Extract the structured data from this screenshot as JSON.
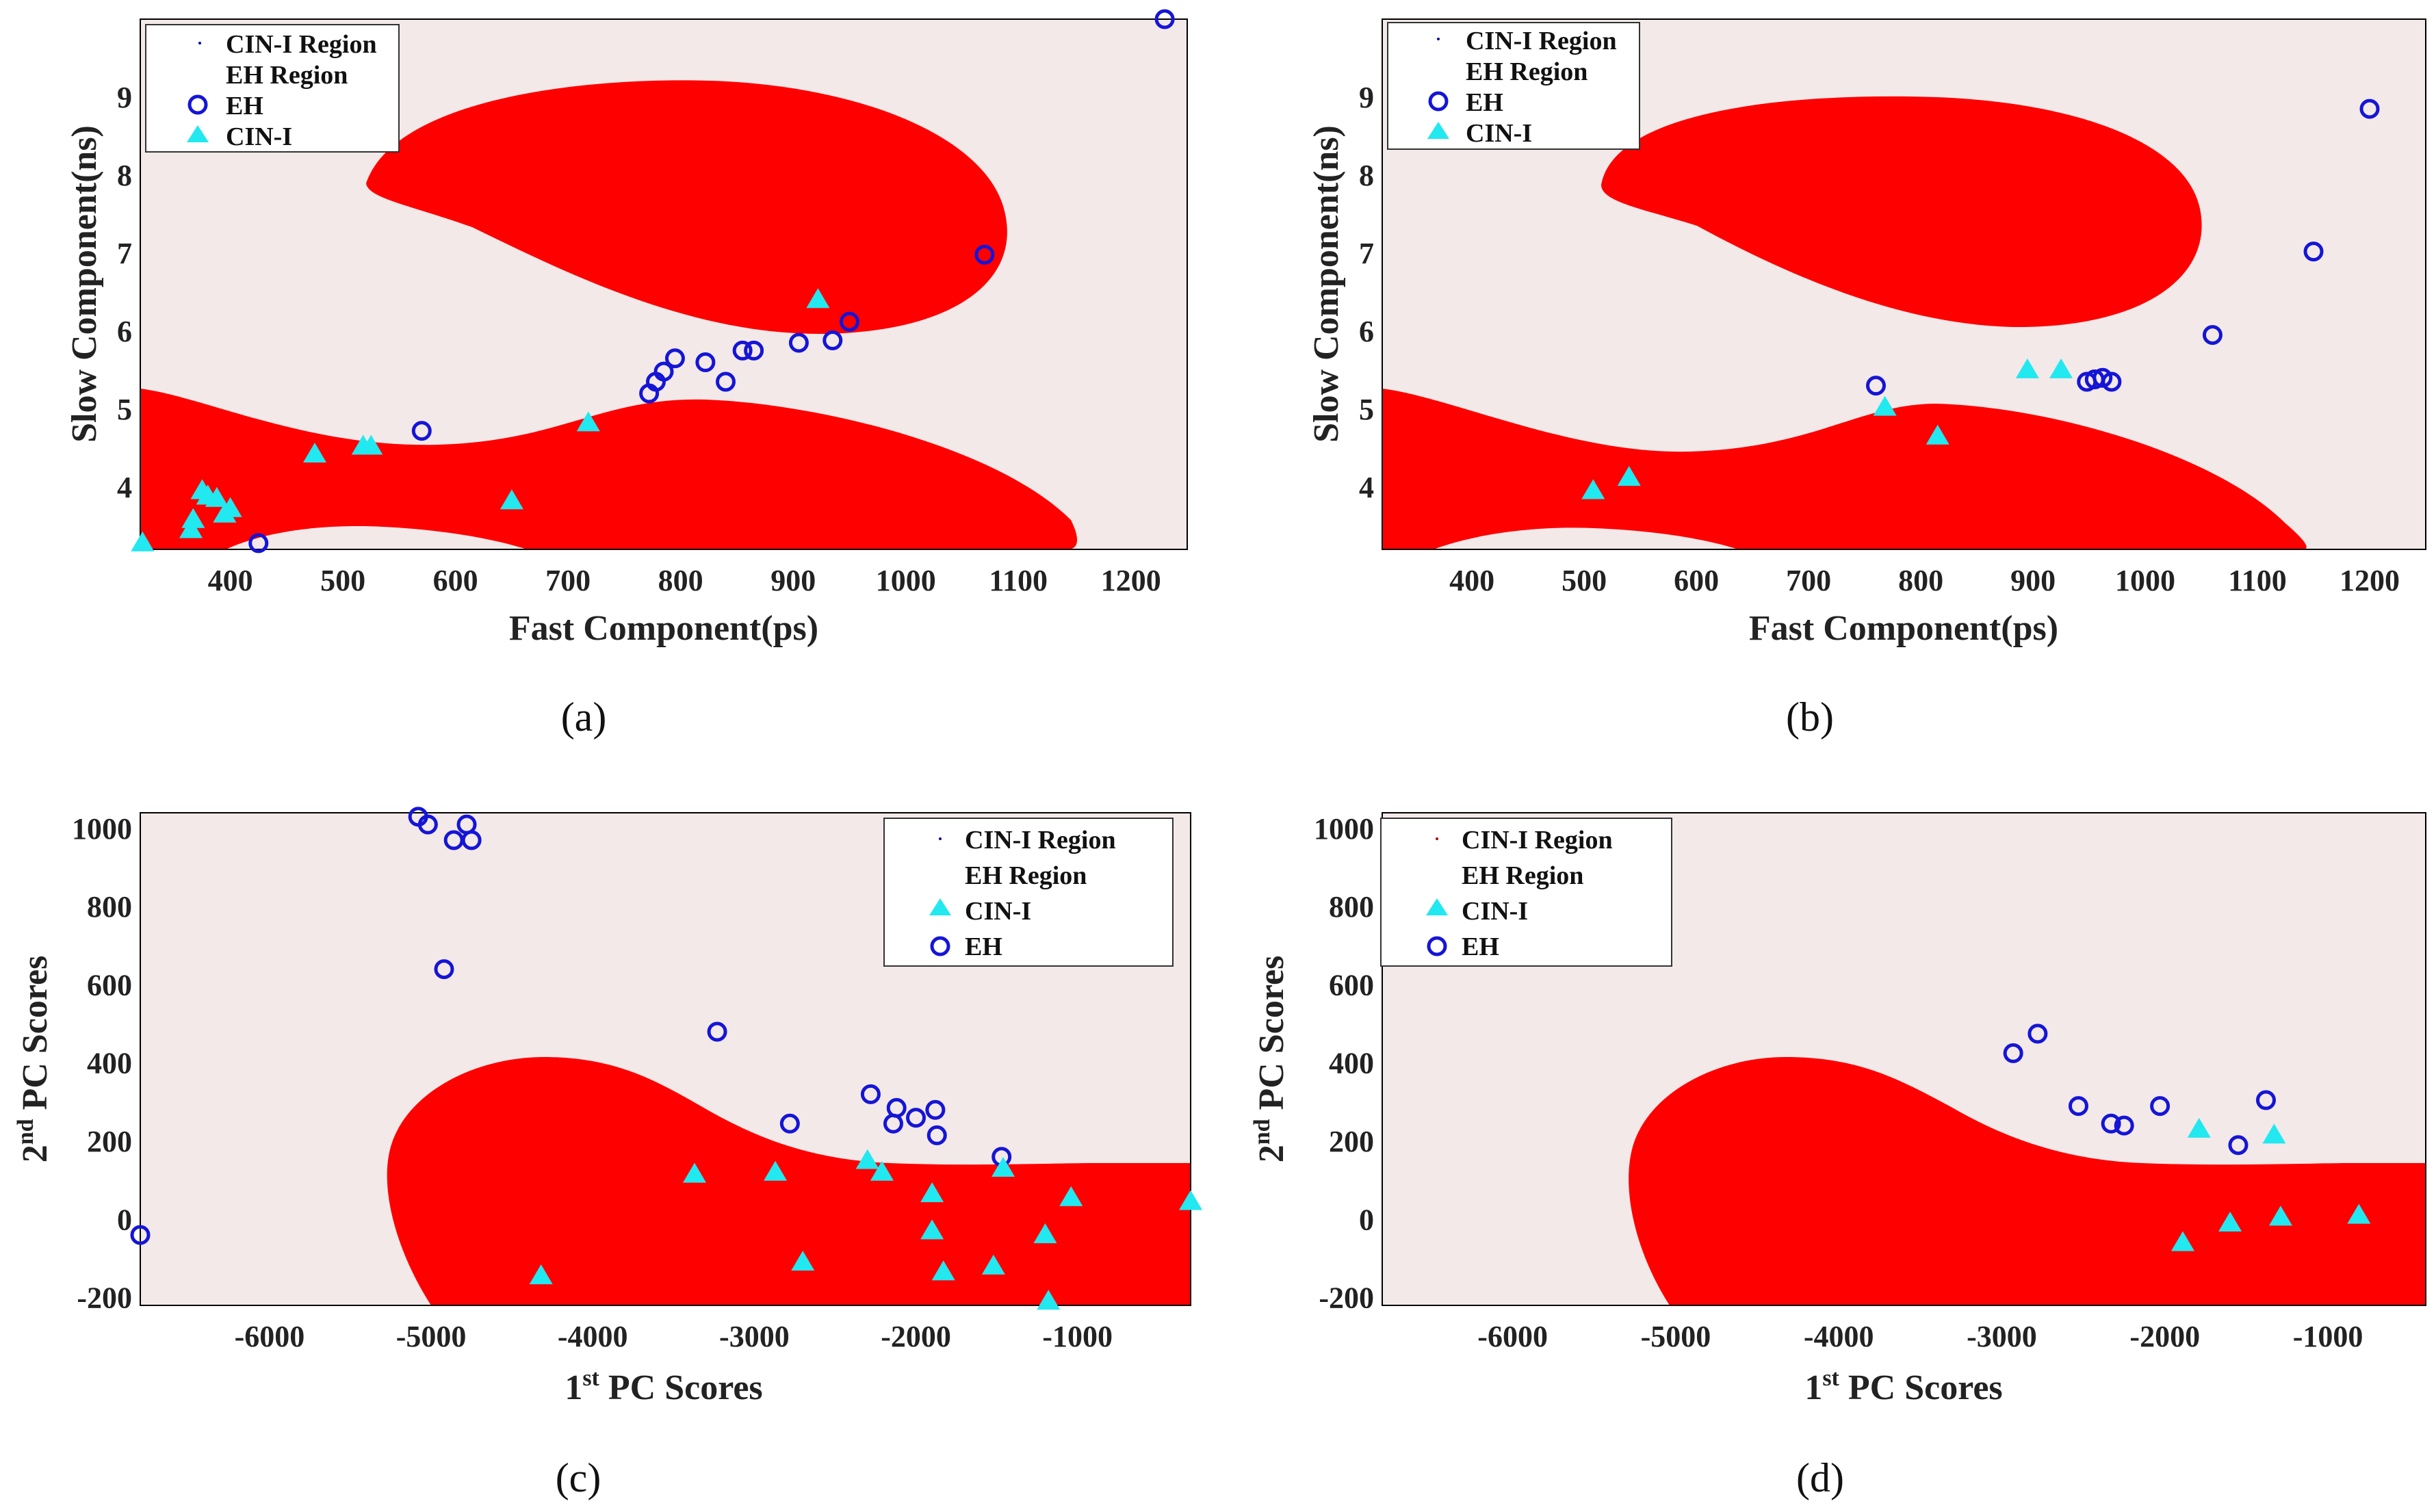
{
  "colors": {
    "plot_background": "#f3e9e9",
    "region_fill": "#ff0000",
    "eh_marker": "#1515d6",
    "cin_marker": "#22e8f0",
    "axis": "#000000"
  },
  "chart_data": [
    {
      "id": "a",
      "type": "scatter",
      "caption": "(a)",
      "xlabel": "Fast Component(ps)",
      "ylabel": "Slow Component(ns)",
      "xlim": [
        320,
        1250
      ],
      "ylim": [
        3.2,
        10
      ],
      "xticks": [
        400,
        500,
        600,
        700,
        800,
        900,
        1000,
        1100,
        1200
      ],
      "yticks": [
        4,
        5,
        6,
        7,
        8,
        9
      ],
      "legend_position": "top-left",
      "legend": [
        "CIN-I Region",
        "EH Region",
        "EH",
        "CIN-I"
      ],
      "series": [
        {
          "name": "EH",
          "marker": "circle",
          "points": [
            [
              1230,
              10.0
            ],
            [
              1070,
              6.98
            ],
            [
              950,
              6.12
            ],
            [
              935,
              5.88
            ],
            [
              905,
              5.85
            ],
            [
              865,
              5.75
            ],
            [
              855,
              5.75
            ],
            [
              840,
              5.35
            ],
            [
              822,
              5.6
            ],
            [
              795,
              5.65
            ],
            [
              785,
              5.48
            ],
            [
              778,
              5.35
            ],
            [
              772,
              5.2
            ],
            [
              570,
              4.72
            ],
            [
              425,
              3.28
            ]
          ]
        },
        {
          "name": "CIN-I",
          "marker": "triangle",
          "points": [
            [
              322,
              3.28
            ],
            [
              365,
              3.45
            ],
            [
              367,
              3.58
            ],
            [
              375,
              3.95
            ],
            [
              380,
              3.88
            ],
            [
              388,
              3.85
            ],
            [
              395,
              3.65
            ],
            [
              400,
              3.72
            ],
            [
              475,
              4.42
            ],
            [
              518,
              4.52
            ],
            [
              525,
              4.52
            ],
            [
              650,
              3.82
            ],
            [
              718,
              4.82
            ],
            [
              922,
              6.4
            ]
          ]
        }
      ]
    },
    {
      "id": "b",
      "type": "scatter",
      "caption": "(b)",
      "xlabel": "Fast Component(ps)",
      "ylabel": "Slow Component(ns)",
      "xlim": [
        320,
        1250
      ],
      "ylim": [
        3.2,
        10
      ],
      "xticks": [
        400,
        500,
        600,
        700,
        800,
        900,
        1000,
        1100,
        1200
      ],
      "yticks": [
        4,
        5,
        6,
        7,
        8,
        9
      ],
      "legend_position": "top-left",
      "legend": [
        "CIN-I Region",
        "EH Region",
        "EH",
        "CIN-I"
      ],
      "series": [
        {
          "name": "EH",
          "marker": "circle",
          "points": [
            [
              1200,
              8.85
            ],
            [
              1150,
              7.02
            ],
            [
              1060,
              5.95
            ],
            [
              970,
              5.35
            ],
            [
              962,
              5.4
            ],
            [
              955,
              5.38
            ],
            [
              948,
              5.35
            ],
            [
              760,
              5.3
            ]
          ]
        },
        {
          "name": "CIN-I",
          "marker": "triangle",
          "points": [
            [
              508,
              3.95
            ],
            [
              540,
              4.12
            ],
            [
              768,
              5.02
            ],
            [
              815,
              4.65
            ],
            [
              895,
              5.5
            ],
            [
              925,
              5.5
            ]
          ]
        }
      ]
    },
    {
      "id": "c",
      "type": "scatter",
      "caption": "(c)",
      "xlabel": "1st PC Scores",
      "xlabel_main": "1",
      "xlabel_sup": "st",
      "xlabel_rest": " PC Scores",
      "ylabel": "2nd PC Scores",
      "ylabel_main": "2",
      "ylabel_sup": "nd",
      "ylabel_rest": " PC Scores",
      "xlim": [
        -6800,
        -300
      ],
      "ylim": [
        -220,
        1040
      ],
      "xticks": [
        -6000,
        -5000,
        -4000,
        -3000,
        -2000,
        -1000
      ],
      "yticks": [
        -200,
        0,
        200,
        400,
        600,
        800,
        1000
      ],
      "legend_position": "top-right",
      "legend": [
        "CIN-I Region",
        "EH Region",
        "CIN-I",
        "EH"
      ],
      "series": [
        {
          "name": "EH",
          "marker": "circle",
          "points": [
            [
              -6800,
              -40
            ],
            [
              -5080,
              1030
            ],
            [
              -5020,
              1010
            ],
            [
              -4920,
              640
            ],
            [
              -4860,
              970
            ],
            [
              -4780,
              1010
            ],
            [
              -4750,
              970
            ],
            [
              -3230,
              480
            ],
            [
              -2780,
              245
            ],
            [
              -2280,
              320
            ],
            [
              -2140,
              245
            ],
            [
              -2120,
              285
            ],
            [
              -2000,
              260
            ],
            [
              -1880,
              280
            ],
            [
              -1870,
              215
            ],
            [
              -1470,
              160
            ]
          ]
        },
        {
          "name": "CIN-I",
          "marker": "triangle",
          "points": [
            [
              -4320,
              -145
            ],
            [
              -3370,
              115
            ],
            [
              -2870,
              120
            ],
            [
              -2700,
              -110
            ],
            [
              -2300,
              150
            ],
            [
              -2210,
              120
            ],
            [
              -1900,
              65
            ],
            [
              -1900,
              -30
            ],
            [
              -1830,
              -135
            ],
            [
              -1520,
              -120
            ],
            [
              -1460,
              130
            ],
            [
              -1200,
              -40
            ],
            [
              -1180,
              -210
            ],
            [
              -1040,
              55
            ],
            [
              -300,
              45
            ]
          ]
        }
      ]
    },
    {
      "id": "d",
      "type": "scatter",
      "caption": "(d)",
      "xlabel": "1st PC Scores",
      "xlabel_main": "1",
      "xlabel_sup": "st",
      "xlabel_rest": " PC Scores",
      "ylabel": "2nd PC Scores",
      "ylabel_main": "2",
      "ylabel_sup": "nd",
      "ylabel_rest": " PC Scores",
      "xlim": [
        -6800,
        -400
      ],
      "ylim": [
        -220,
        1040
      ],
      "xticks": [
        -6000,
        -5000,
        -4000,
        -3000,
        -2000,
        -1000
      ],
      "yticks": [
        -200,
        0,
        200,
        400,
        600,
        800,
        1000
      ],
      "legend_position": "top-left",
      "legend": [
        "CIN-I Region",
        "EH Region",
        "CIN-I",
        "EH"
      ],
      "series": [
        {
          "name": "EH",
          "marker": "circle",
          "points": [
            [
              -2930,
              425
            ],
            [
              -2780,
              475
            ],
            [
              -2530,
              290
            ],
            [
              -2330,
              245
            ],
            [
              -2250,
              240
            ],
            [
              -2030,
              290
            ],
            [
              -1550,
              190
            ],
            [
              -1380,
              305
            ]
          ]
        },
        {
          "name": "CIN-I",
          "marker": "triangle",
          "points": [
            [
              -1790,
              230
            ],
            [
              -1330,
              215
            ],
            [
              -1890,
              -60
            ],
            [
              -1600,
              -10
            ],
            [
              -1290,
              5
            ],
            [
              -810,
              10
            ]
          ]
        }
      ]
    }
  ]
}
